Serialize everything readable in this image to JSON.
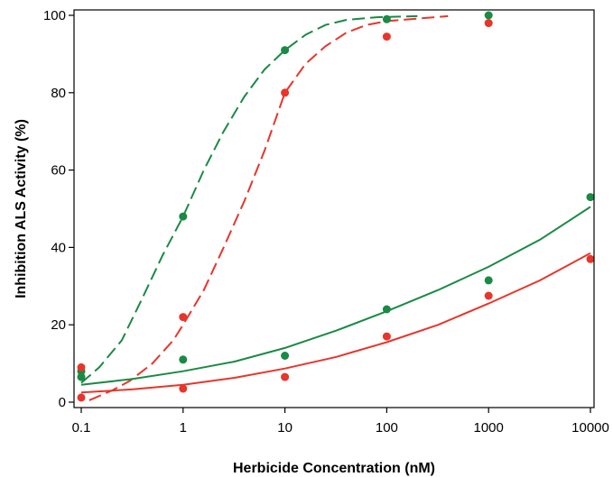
{
  "chart_data": {
    "type": "scatter",
    "title": "",
    "xlabel": "Herbicide Concentration (nM)",
    "ylabel": "Inhibition ALS Activity (%)",
    "x_scale": "log",
    "xlim": [
      0.1,
      10000
    ],
    "ylim": [
      0,
      100
    ],
    "x_ticks": [
      0.1,
      1,
      10,
      100,
      1000,
      10000
    ],
    "x_tick_labels": [
      "0.1",
      "1",
      "10",
      "100",
      "1000",
      "10000"
    ],
    "y_ticks": [
      0,
      20,
      40,
      60,
      80,
      100
    ],
    "y_tick_labels": [
      "0",
      "20",
      "40",
      "60",
      "80",
      "100"
    ],
    "grid": false,
    "legend": "none",
    "series": [
      {
        "color": "#1a8a45",
        "line_style": "dashed",
        "points": [
          {
            "x": 0.1,
            "y": 6.5
          },
          {
            "x": 0.1,
            "y": 8
          },
          {
            "x": 1,
            "y": 48
          },
          {
            "x": 10,
            "y": 91
          },
          {
            "x": 100,
            "y": 99
          },
          {
            "x": 1000,
            "y": 100
          }
        ],
        "fit": [
          {
            "x": 0.1,
            "y": 5
          },
          {
            "x": 0.15,
            "y": 9
          },
          {
            "x": 0.25,
            "y": 16
          },
          {
            "x": 0.4,
            "y": 27
          },
          {
            "x": 0.63,
            "y": 38
          },
          {
            "x": 1,
            "y": 48
          },
          {
            "x": 1.6,
            "y": 60
          },
          {
            "x": 2.5,
            "y": 70
          },
          {
            "x": 4,
            "y": 79
          },
          {
            "x": 6.3,
            "y": 86
          },
          {
            "x": 10,
            "y": 91
          },
          {
            "x": 16,
            "y": 95
          },
          {
            "x": 25,
            "y": 97.5
          },
          {
            "x": 40,
            "y": 98.8
          },
          {
            "x": 80,
            "y": 99.5
          },
          {
            "x": 200,
            "y": 99.8
          }
        ]
      },
      {
        "color": "#e8352b",
        "line_style": "dashed",
        "points": [
          {
            "x": 0.1,
            "y": 9
          },
          {
            "x": 0.1,
            "y": 1.2
          },
          {
            "x": 1,
            "y": 22
          },
          {
            "x": 10,
            "y": 80
          },
          {
            "x": 100,
            "y": 94.5
          },
          {
            "x": 1000,
            "y": 98
          }
        ],
        "fit": [
          {
            "x": 0.12,
            "y": 0.5
          },
          {
            "x": 0.2,
            "y": 3
          },
          {
            "x": 0.3,
            "y": 5.5
          },
          {
            "x": 0.5,
            "y": 10
          },
          {
            "x": 0.8,
            "y": 16
          },
          {
            "x": 1,
            "y": 20
          },
          {
            "x": 1.6,
            "y": 29
          },
          {
            "x": 2.5,
            "y": 40
          },
          {
            "x": 4,
            "y": 52
          },
          {
            "x": 6.3,
            "y": 65
          },
          {
            "x": 10,
            "y": 80
          },
          {
            "x": 16,
            "y": 87.5
          },
          {
            "x": 25,
            "y": 92
          },
          {
            "x": 40,
            "y": 95.5
          },
          {
            "x": 63,
            "y": 97.5
          },
          {
            "x": 100,
            "y": 98.5
          },
          {
            "x": 400,
            "y": 99.8
          }
        ]
      },
      {
        "color": "#1a8a45",
        "line_style": "solid",
        "points": [
          {
            "x": 1,
            "y": 11
          },
          {
            "x": 10,
            "y": 12
          },
          {
            "x": 100,
            "y": 24
          },
          {
            "x": 1000,
            "y": 31.5
          },
          {
            "x": 10000,
            "y": 53
          }
        ],
        "fit": [
          {
            "x": 0.1,
            "y": 4.5
          },
          {
            "x": 0.32,
            "y": 6
          },
          {
            "x": 1,
            "y": 8
          },
          {
            "x": 3.2,
            "y": 10.5
          },
          {
            "x": 10,
            "y": 14
          },
          {
            "x": 32,
            "y": 18.5
          },
          {
            "x": 100,
            "y": 23.5
          },
          {
            "x": 320,
            "y": 29
          },
          {
            "x": 1000,
            "y": 35
          },
          {
            "x": 3200,
            "y": 42
          },
          {
            "x": 10000,
            "y": 50.5
          }
        ]
      },
      {
        "color": "#e8352b",
        "line_style": "solid",
        "points": [
          {
            "x": 1,
            "y": 3.5
          },
          {
            "x": 10,
            "y": 6.5
          },
          {
            "x": 100,
            "y": 17
          },
          {
            "x": 1000,
            "y": 27.5
          },
          {
            "x": 10000,
            "y": 37
          }
        ],
        "fit": [
          {
            "x": 0.1,
            "y": 2.5
          },
          {
            "x": 0.32,
            "y": 3.3
          },
          {
            "x": 1,
            "y": 4.5
          },
          {
            "x": 3.2,
            "y": 6.3
          },
          {
            "x": 10,
            "y": 8.7
          },
          {
            "x": 32,
            "y": 11.7
          },
          {
            "x": 100,
            "y": 15.5
          },
          {
            "x": 320,
            "y": 20
          },
          {
            "x": 1000,
            "y": 25.5
          },
          {
            "x": 3200,
            "y": 31.5
          },
          {
            "x": 10000,
            "y": 38.5
          }
        ]
      }
    ]
  }
}
